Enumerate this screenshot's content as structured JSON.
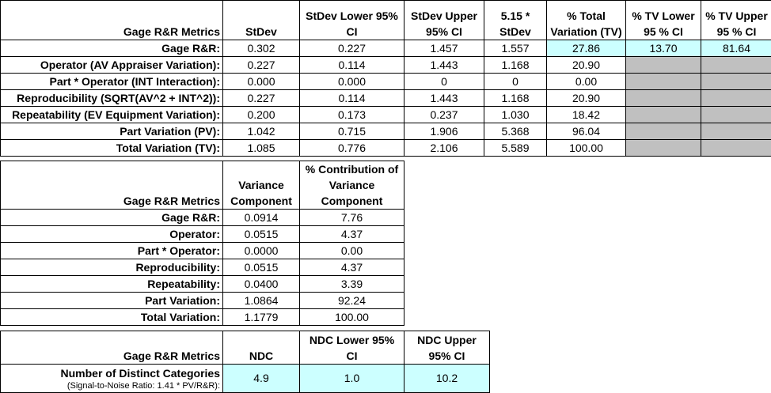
{
  "table1": {
    "headers": [
      "Gage R&R Metrics",
      "StDev",
      "StDev Lower 95% CI",
      "StDev Upper 95% CI",
      "5.15 * StDev",
      "% Total Variation (TV)",
      "% TV Lower 95 % CI",
      "% TV Upper 95 % CI"
    ],
    "header_lines": [
      [
        "Gage R&R Metrics"
      ],
      [
        "StDev"
      ],
      [
        "StDev Lower 95%",
        "CI"
      ],
      [
        "StDev Upper",
        "95% CI"
      ],
      [
        "5.15 *",
        "StDev"
      ],
      [
        "% Total",
        "Variation (TV)"
      ],
      [
        "% TV Lower",
        "95 % CI"
      ],
      [
        "% TV Upper",
        "95 % CI"
      ]
    ],
    "rows": [
      {
        "label": "Gage R&R:",
        "values": [
          "0.302",
          "0.227",
          "1.457",
          "1.557",
          "27.86",
          "13.70",
          "81.64"
        ]
      },
      {
        "label": "Operator (AV Appraiser Variation):",
        "values": [
          "0.227",
          "0.114",
          "1.443",
          "1.168",
          "20.90",
          "",
          ""
        ]
      },
      {
        "label": "Part * Operator (INT Interaction):",
        "values": [
          "0.000",
          "0.000",
          "0",
          "0",
          "0.00",
          "",
          ""
        ]
      },
      {
        "label": "Reproducibility (SQRT(AV^2 + INT^2)):",
        "values": [
          "0.227",
          "0.114",
          "1.443",
          "1.168",
          "20.90",
          "",
          ""
        ]
      },
      {
        "label": "Repeatability (EV Equipment Variation):",
        "values": [
          "0.200",
          "0.173",
          "0.237",
          "1.030",
          "18.42",
          "",
          ""
        ]
      },
      {
        "label": "Part Variation (PV):",
        "values": [
          "1.042",
          "0.715",
          "1.906",
          "5.368",
          "96.04",
          "",
          ""
        ]
      },
      {
        "label": "Total Variation (TV):",
        "values": [
          "1.085",
          "0.776",
          "2.106",
          "5.589",
          "100.00",
          "",
          ""
        ]
      }
    ]
  },
  "table2": {
    "header_lines": [
      [
        "Gage R&R Metrics"
      ],
      [
        "Variance",
        "Component"
      ],
      [
        "% Contribution of",
        "Variance",
        "Component"
      ]
    ],
    "rows": [
      {
        "label": "Gage R&R:",
        "values": [
          "0.0914",
          "7.76"
        ]
      },
      {
        "label": "Operator:",
        "values": [
          "0.0515",
          "4.37"
        ]
      },
      {
        "label": "Part * Operator:",
        "values": [
          "0.0000",
          "0.00"
        ]
      },
      {
        "label": "Reproducibility:",
        "values": [
          "0.0515",
          "4.37"
        ]
      },
      {
        "label": "Repeatability:",
        "values": [
          "0.0400",
          "3.39"
        ]
      },
      {
        "label": "Part Variation:",
        "values": [
          "1.0864",
          "92.24"
        ]
      },
      {
        "label": "Total Variation:",
        "values": [
          "1.1779",
          "100.00"
        ]
      }
    ]
  },
  "table3": {
    "header_lines": [
      [
        "Gage R&R Metrics"
      ],
      [
        "NDC"
      ],
      [
        "NDC Lower 95%",
        "CI"
      ],
      [
        "NDC Upper",
        "95% CI"
      ]
    ],
    "row": {
      "label": "Number of Distinct Categories",
      "sublabel": "(Signal-to-Noise Ratio: 1.41 * PV/R&R):",
      "values": [
        "4.9",
        "1.0",
        "10.2"
      ]
    }
  },
  "colors": {
    "highlight": "#ccffff",
    "shade": "#c0c0c0"
  }
}
